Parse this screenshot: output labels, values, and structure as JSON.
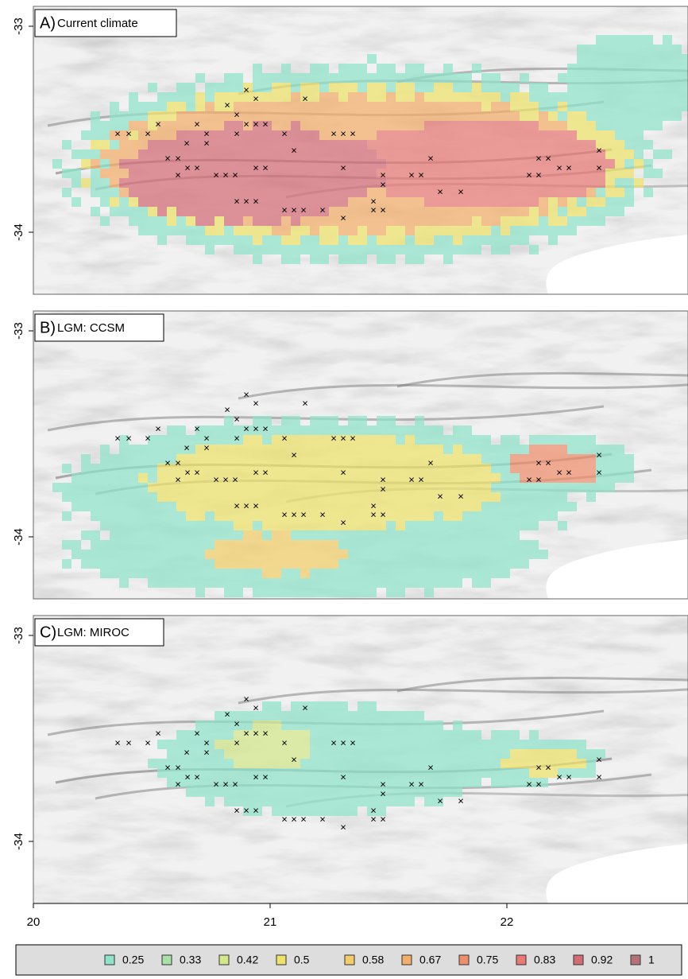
{
  "panels": [
    {
      "label": "A)",
      "title": "Current climate"
    },
    {
      "label": "B)",
      "title": "LGM: CCSM"
    },
    {
      "label": "C)",
      "title": "LGM: MIROC"
    }
  ],
  "y_axis": {
    "ticks": [
      "-33",
      "-34"
    ]
  },
  "x_axis": {
    "ticks": [
      "20",
      "21",
      "22"
    ]
  },
  "legend": {
    "items": [
      {
        "label": "0.25",
        "color": "#8fe3c9"
      },
      {
        "label": "0.33",
        "color": "#a8e0a8"
      },
      {
        "label": "0.42",
        "color": "#d4e88a"
      },
      {
        "label": "0.5",
        "color": "#eee36a"
      },
      {
        "label": "0.58",
        "color": "#f3cd6a"
      },
      {
        "label": "0.67",
        "color": "#f2ae6a"
      },
      {
        "label": "0.75",
        "color": "#ee8f6c"
      },
      {
        "label": "0.83",
        "color": "#e77a74"
      },
      {
        "label": "0.92",
        "color": "#d46c76"
      },
      {
        "label": "1",
        "color": "#b87275"
      }
    ]
  }
}
